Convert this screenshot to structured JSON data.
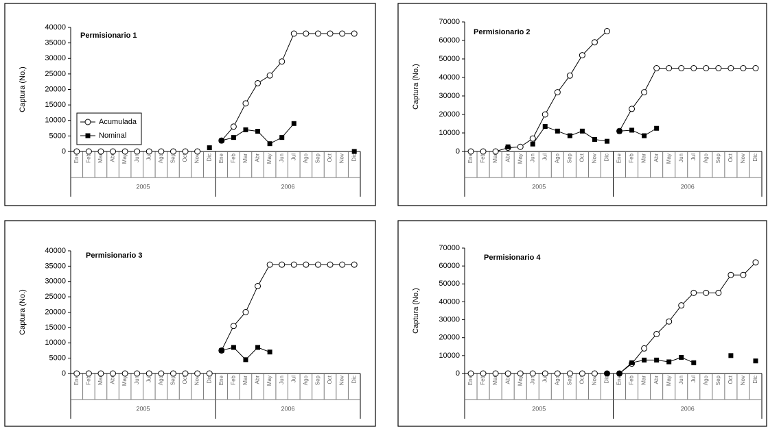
{
  "chart_data": [
    {
      "type": "line",
      "title": "Permisionario 1",
      "ylabel": "Captura (No.)",
      "categories": [
        "Ene",
        "Feb",
        "Mar",
        "Abr",
        "May",
        "Jun",
        "Jul",
        "Ago",
        "Sep",
        "Oct",
        "Nov",
        "Dic",
        "Ene",
        "Feb",
        "Mar",
        "Abr",
        "May",
        "Jun",
        "Jul",
        "Ago",
        "Sep",
        "Oct",
        "Nov",
        "Dic"
      ],
      "group_labels": [
        "2005",
        "2006"
      ],
      "break_between_groups": true,
      "legend": true,
      "ylim": [
        0,
        40000
      ],
      "yticks": [
        0,
        5000,
        10000,
        15000,
        20000,
        25000,
        30000,
        35000,
        40000
      ],
      "series": [
        {
          "name": "Acumulada",
          "color": "#000000",
          "marker": "circle-open",
          "values": [
            0,
            0,
            0,
            0,
            0,
            0,
            0,
            0,
            0,
            0,
            0,
            null,
            3500,
            8000,
            15500,
            22000,
            24500,
            29000,
            38000,
            38000,
            38000,
            38000,
            38000,
            38000
          ]
        },
        {
          "name": "Nominal",
          "color": "#000000",
          "marker": "square",
          "values": [
            null,
            null,
            null,
            null,
            null,
            null,
            null,
            null,
            null,
            null,
            null,
            1200,
            3500,
            4500,
            7000,
            6500,
            2500,
            4500,
            9000,
            null,
            null,
            null,
            null,
            0
          ]
        }
      ]
    },
    {
      "type": "line",
      "title": "Permisionario 2",
      "ylabel": "Captura (No.)",
      "categories": [
        "Ene",
        "Feb",
        "Mar",
        "Abr",
        "May",
        "Jun",
        "Jul",
        "Ago",
        "Sep",
        "Oct",
        "Nov",
        "Dic",
        "Ene",
        "Feb",
        "Mar",
        "Abr",
        "May",
        "Jun",
        "Jul",
        "Ago",
        "Sep",
        "Oct",
        "Nov",
        "Dic"
      ],
      "group_labels": [
        "2005",
        "2006"
      ],
      "break_between_groups": true,
      "legend": false,
      "ylim": [
        0,
        70000
      ],
      "yticks": [
        0,
        10000,
        20000,
        30000,
        40000,
        50000,
        60000,
        70000
      ],
      "series": [
        {
          "name": "Acumulada",
          "color": "#000000",
          "marker": "circle-open",
          "values": [
            0,
            0,
            0,
            2000,
            2500,
            7000,
            20000,
            32000,
            41000,
            52000,
            59000,
            65000,
            11000,
            23000,
            32000,
            45000,
            45000,
            45000,
            45000,
            45000,
            45000,
            45000,
            45000,
            45000
          ]
        },
        {
          "name": "Nominal",
          "color": "#000000",
          "marker": "square",
          "values": [
            null,
            null,
            null,
            2500,
            null,
            4000,
            13500,
            11000,
            8500,
            11000,
            6500,
            5500,
            11000,
            11500,
            8500,
            12500,
            null,
            null,
            null,
            null,
            null,
            null,
            null,
            null
          ]
        }
      ]
    },
    {
      "type": "line",
      "title": "Permisionario 3",
      "ylabel": "Captura (No.)",
      "categories": [
        "Ene",
        "Feb",
        "Mar",
        "Abr",
        "May",
        "Jun",
        "Jul",
        "Ago",
        "Sep",
        "Oct",
        "Nov",
        "Dic",
        "Ene",
        "Feb",
        "Mar",
        "Abr",
        "May",
        "Jun",
        "Jul",
        "Ago",
        "Sep",
        "Oct",
        "Nov",
        "Dic"
      ],
      "group_labels": [
        "2005",
        "2006"
      ],
      "break_between_groups": true,
      "legend": false,
      "ylim": [
        0,
        40000
      ],
      "yticks": [
        0,
        5000,
        10000,
        15000,
        20000,
        25000,
        30000,
        35000,
        40000
      ],
      "series": [
        {
          "name": "Acumulada",
          "color": "#000000",
          "marker": "circle-open",
          "values": [
            0,
            0,
            0,
            0,
            0,
            0,
            0,
            0,
            0,
            0,
            0,
            0,
            7500,
            15500,
            20000,
            28500,
            35500,
            35500,
            35500,
            35500,
            35500,
            35500,
            35500,
            35500
          ]
        },
        {
          "name": "Nominal",
          "color": "#000000",
          "marker": "square",
          "values": [
            null,
            null,
            null,
            null,
            null,
            null,
            null,
            null,
            null,
            null,
            null,
            null,
            7500,
            8500,
            4500,
            8500,
            7000,
            null,
            null,
            null,
            null,
            null,
            null,
            null
          ]
        }
      ]
    },
    {
      "type": "line",
      "title": "Permisionario 4",
      "ylabel": "Captura (No.)",
      "categories": [
        "Ene",
        "Feb",
        "Mar",
        "Abr",
        "May",
        "Jun",
        "Jul",
        "Ago",
        "Sep",
        "Oct",
        "Nov",
        "Dic",
        "Ene",
        "Feb",
        "Mar",
        "Abr",
        "May",
        "Jun",
        "Jul",
        "Ago",
        "Sep",
        "Oct",
        "Nov",
        "Dic"
      ],
      "group_labels": [
        "2005",
        "2006"
      ],
      "break_between_groups": false,
      "legend": false,
      "ylim": [
        0,
        70000
      ],
      "yticks": [
        0,
        10000,
        20000,
        30000,
        40000,
        50000,
        60000,
        70000
      ],
      "series": [
        {
          "name": "Acumulada",
          "color": "#000000",
          "marker": "circle-open",
          "values": [
            0,
            0,
            0,
            0,
            0,
            0,
            0,
            0,
            0,
            0,
            0,
            0,
            0,
            5500,
            14000,
            22000,
            29000,
            38000,
            45000,
            45000,
            45000,
            55000,
            55000,
            62000
          ]
        },
        {
          "name": "Nominal",
          "color": "#000000",
          "marker": "square",
          "values": [
            null,
            null,
            null,
            null,
            null,
            null,
            null,
            null,
            null,
            null,
            null,
            0,
            0,
            6000,
            7500,
            7500,
            6500,
            9000,
            6000,
            null,
            null,
            10000,
            null,
            7000
          ]
        }
      ]
    }
  ]
}
